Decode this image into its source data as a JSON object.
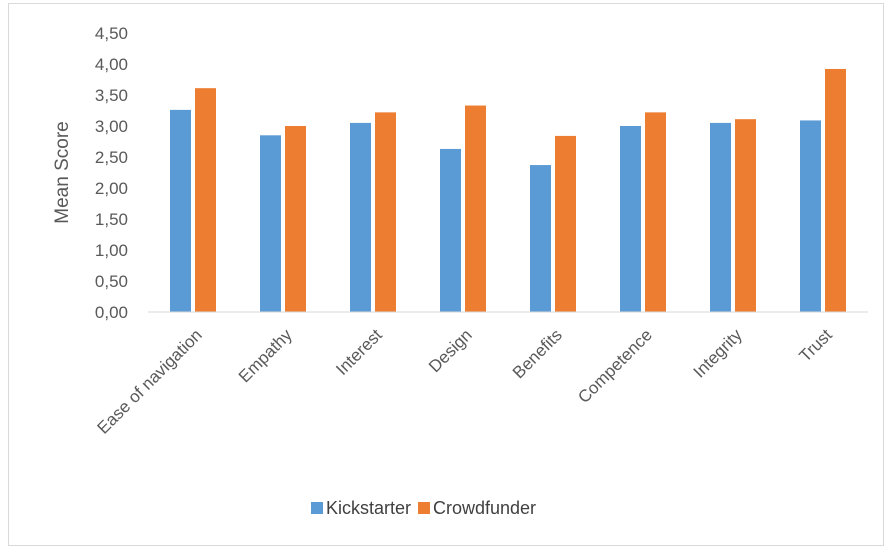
{
  "chart_data": {
    "type": "bar",
    "title": "",
    "xlabel": "",
    "ylabel": "Mean Score",
    "ylim": [
      0,
      4.5
    ],
    "ytick_step": 0.5,
    "ytick_labels": [
      "0,00",
      "0,50",
      "1,00",
      "1,50",
      "2,00",
      "2,50",
      "3,00",
      "3,50",
      "4,00",
      "4,50"
    ],
    "grid": false,
    "legend_position": "bottom",
    "categories": [
      "Ease of navigation",
      "Empathy",
      "Interest",
      "Design",
      "Benefits",
      "Competence",
      "Integrity",
      "Trust"
    ],
    "series": [
      {
        "name": "Kickstarter",
        "color": "#5b9bd5",
        "values": [
          3.26,
          2.85,
          3.05,
          2.63,
          2.37,
          3.0,
          3.05,
          3.09
        ]
      },
      {
        "name": "Crowdfunder",
        "color": "#ed7d31",
        "values": [
          3.61,
          3.0,
          3.22,
          3.33,
          2.84,
          3.22,
          3.11,
          3.92
        ]
      }
    ]
  }
}
